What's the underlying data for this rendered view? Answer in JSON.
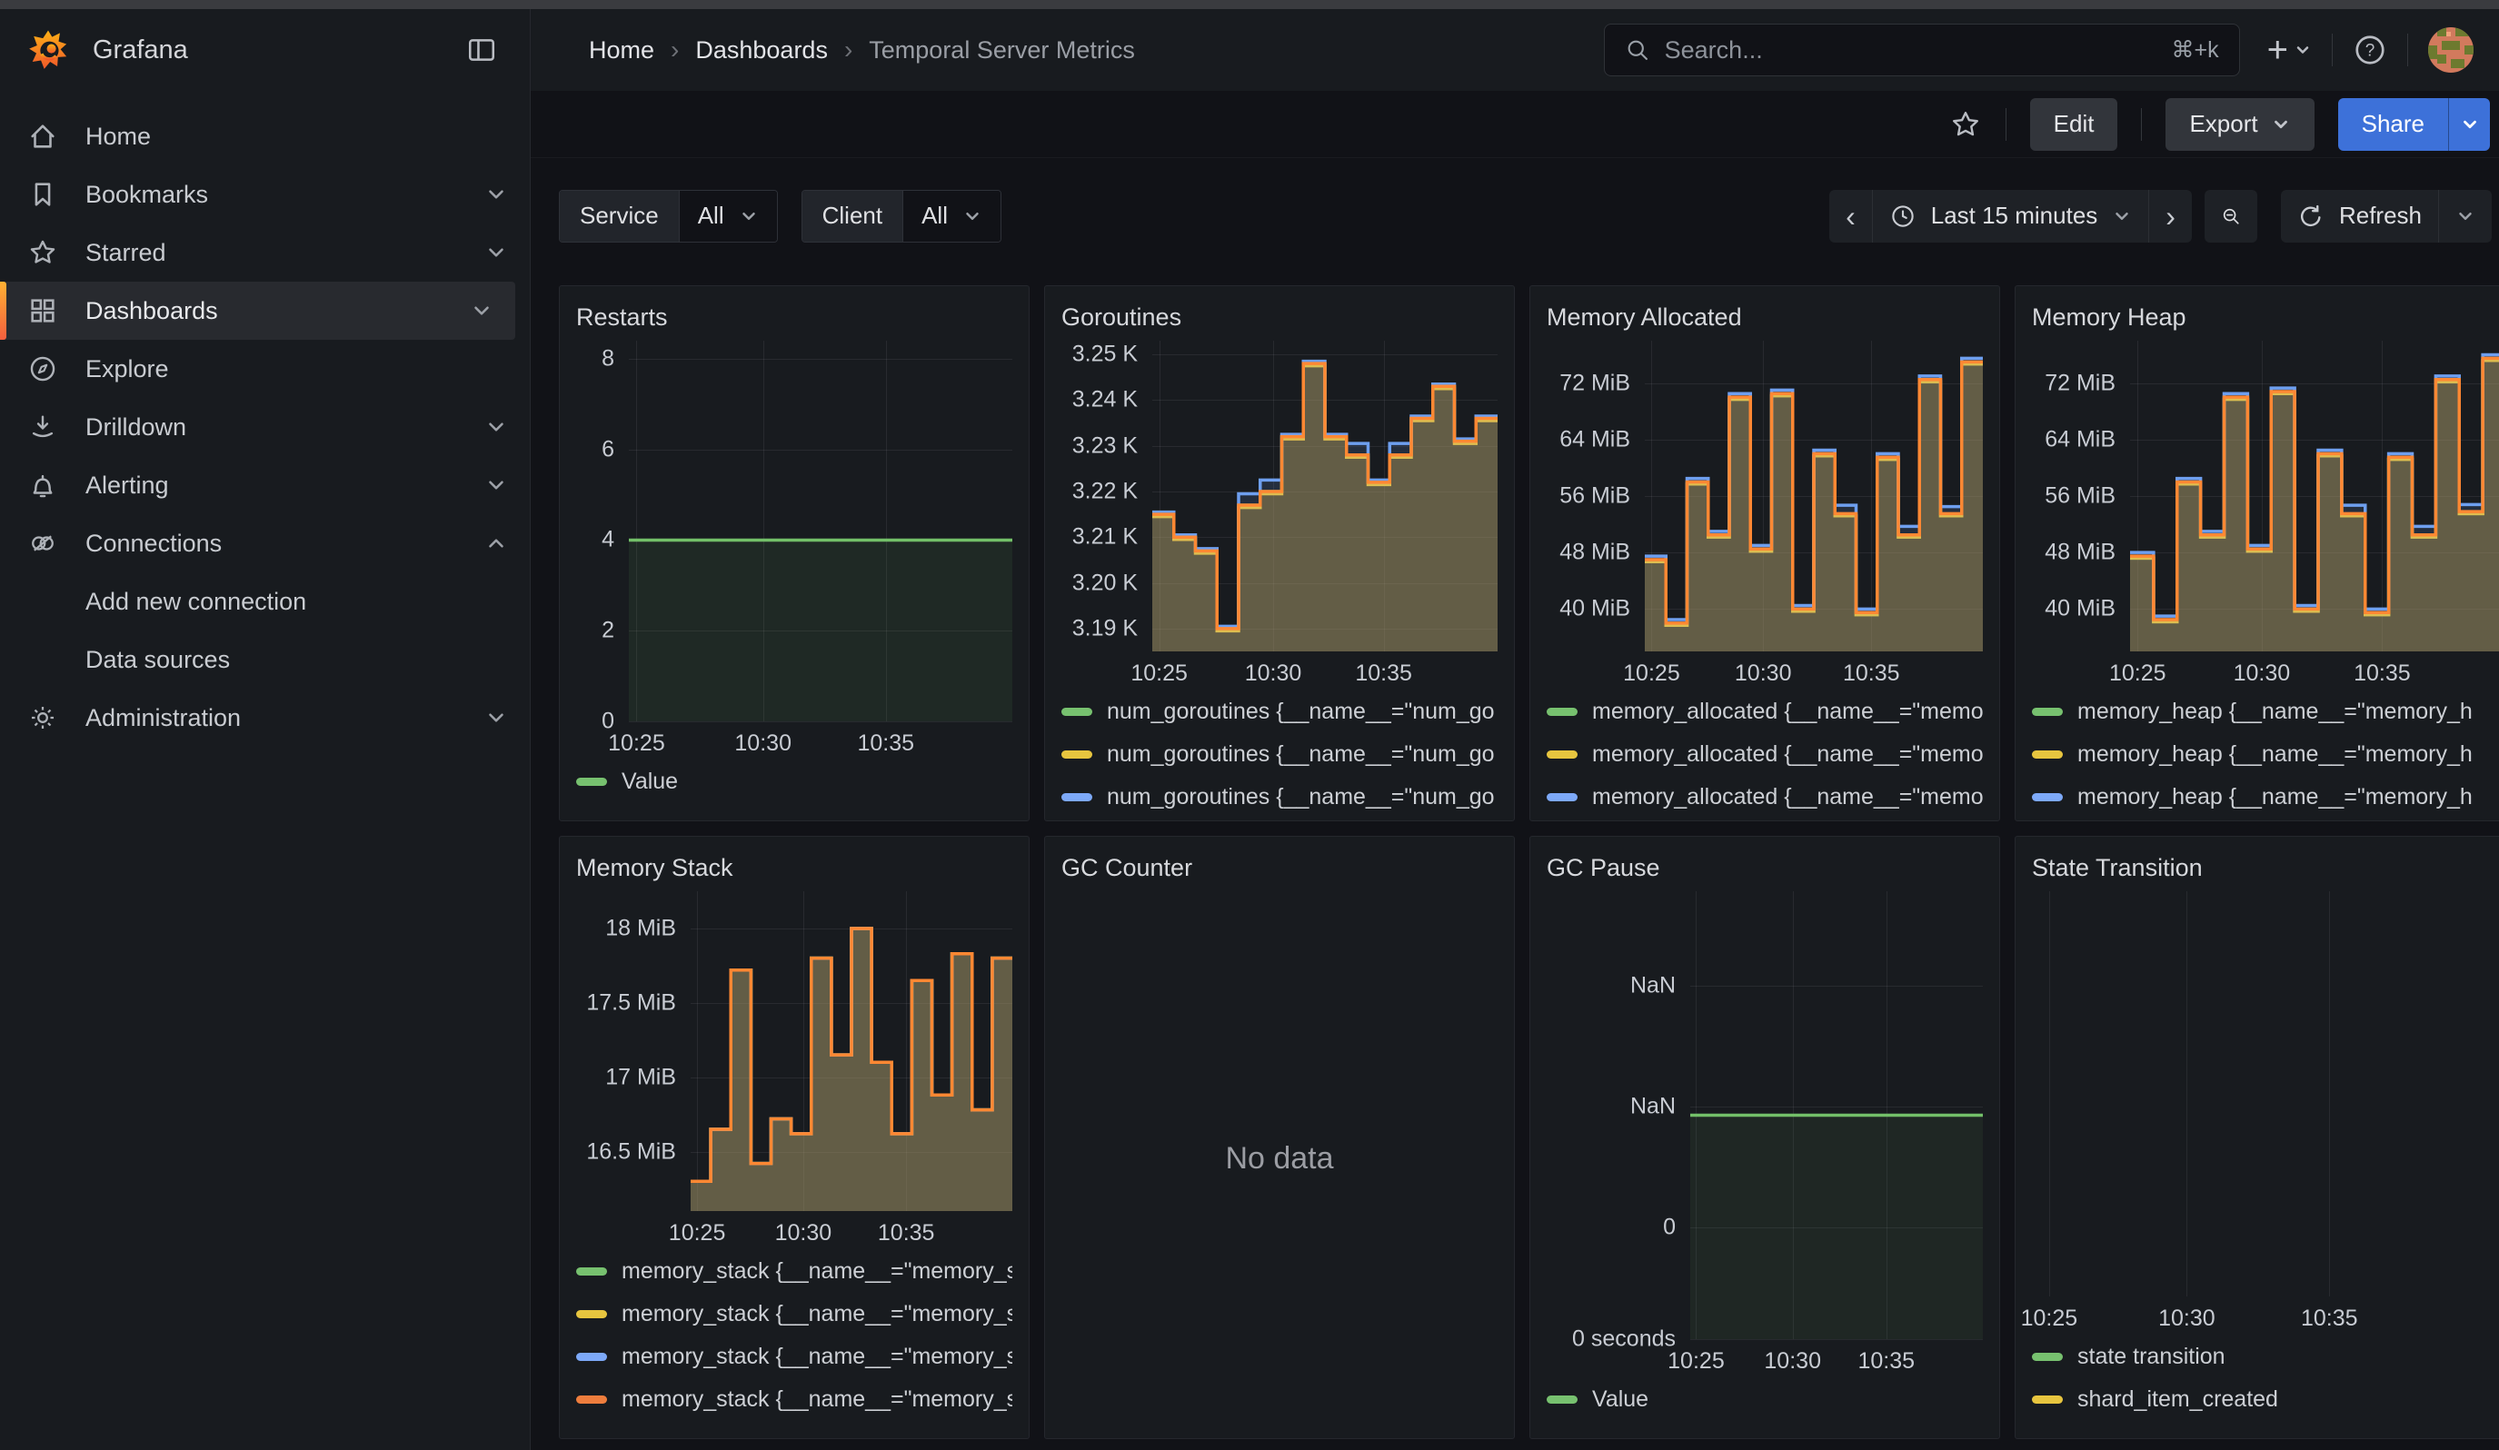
{
  "header": {
    "brand": "Grafana",
    "breadcrumb": [
      "Home",
      "Dashboards",
      "Temporal Server Metrics"
    ],
    "search": {
      "placeholder": "Search...",
      "shortcut": "⌘+k"
    }
  },
  "sidebar": {
    "items": [
      {
        "label": "Home"
      },
      {
        "label": "Bookmarks"
      },
      {
        "label": "Starred"
      },
      {
        "label": "Dashboards"
      },
      {
        "label": "Explore"
      },
      {
        "label": "Drilldown"
      },
      {
        "label": "Alerting"
      },
      {
        "label": "Connections"
      },
      {
        "label": "Add new connection"
      },
      {
        "label": "Data sources"
      },
      {
        "label": "Administration"
      }
    ]
  },
  "toolbar": {
    "edit_label": "Edit",
    "export_label": "Export",
    "share_label": "Share"
  },
  "filters": {
    "service_label": "Service",
    "service_value": "All",
    "client_label": "Client",
    "client_value": "All",
    "time_range": "Last 15 minutes",
    "refresh_label": "Refresh"
  },
  "panels": [
    {
      "title": "Restarts"
    },
    {
      "title": "Goroutines"
    },
    {
      "title": "Memory Allocated"
    },
    {
      "title": "Memory Heap"
    },
    {
      "title": "Memory Stack"
    },
    {
      "title": "GC Counter",
      "no_data": "No data"
    },
    {
      "title": "GC Pause"
    },
    {
      "title": "State Transition"
    }
  ],
  "colors": {
    "accent_blue": "#3d71d9",
    "accent_orange": "#ff8833",
    "series_green": "#77c16f",
    "series_yellow": "#e7c53f",
    "series_blue": "#7da9f8",
    "series_orange": "#ee7d3d"
  },
  "chart_data": [
    {
      "type": "area",
      "title": "Restarts",
      "ymin": 0,
      "ymax": 8.4,
      "ylabels": [
        {
          "t": "8",
          "v": 8
        },
        {
          "t": "6",
          "v": 6
        },
        {
          "t": "4",
          "v": 4
        },
        {
          "t": "2",
          "v": 2
        },
        {
          "t": "0",
          "v": 0
        }
      ],
      "xticks": [
        {
          "t": "10:25",
          "f": 0.02
        },
        {
          "t": "10:30",
          "f": 0.35
        },
        {
          "t": "10:35",
          "f": 0.67
        }
      ],
      "axis_width": 58,
      "series": [
        {
          "name": "Value",
          "color": "#73bf69",
          "fill": 0.09,
          "values": [
            4,
            4,
            4,
            4,
            4,
            4,
            4,
            4
          ]
        }
      ],
      "legend": [
        {
          "label": "Value",
          "color": "#77c16f"
        }
      ]
    },
    {
      "type": "area",
      "title": "Goroutines",
      "ymin": 3.185,
      "ymax": 3.253,
      "ylabels": [
        {
          "t": "3.25 K",
          "v": 3.25
        },
        {
          "t": "3.24 K",
          "v": 3.24
        },
        {
          "t": "3.23 K",
          "v": 3.23
        },
        {
          "t": "3.22 K",
          "v": 3.22
        },
        {
          "t": "3.21 K",
          "v": 3.21
        },
        {
          "t": "3.20 K",
          "v": 3.2
        },
        {
          "t": "3.19 K",
          "v": 3.19
        }
      ],
      "xticks": [
        {
          "t": "10:25",
          "f": 0.02
        },
        {
          "t": "10:30",
          "f": 0.35
        },
        {
          "t": "10:35",
          "f": 0.67
        }
      ],
      "axis_width": 100,
      "series": [
        {
          "name": "green",
          "color": "#73bf69",
          "values": [
            3.215,
            3.21,
            3.207,
            3.19,
            3.217,
            3.22,
            3.232,
            3.248,
            3.232,
            3.228,
            3.222,
            3.228,
            3.236,
            3.243,
            3.231,
            3.236
          ]
        },
        {
          "name": "yellow",
          "color": "#eace3a",
          "values": [
            3.2145,
            3.2095,
            3.2065,
            3.1895,
            3.2165,
            3.2195,
            3.2315,
            3.2475,
            3.2315,
            3.2275,
            3.2215,
            3.2275,
            3.2355,
            3.2425,
            3.2305,
            3.2355
          ]
        },
        {
          "name": "blue",
          "color": "#6e9fef",
          "values": [
            3.2155,
            3.2105,
            3.2075,
            3.1905,
            3.2195,
            3.2225,
            3.2325,
            3.2485,
            3.2325,
            3.2305,
            3.2225,
            3.2305,
            3.2365,
            3.2435,
            3.2315,
            3.2365
          ]
        },
        {
          "name": "orange",
          "color": "#ff8833",
          "values": [
            3.215,
            3.21,
            3.207,
            3.19,
            3.217,
            3.22,
            3.232,
            3.248,
            3.232,
            3.228,
            3.222,
            3.228,
            3.236,
            3.243,
            3.231,
            3.236
          ]
        }
      ],
      "legend": [
        {
          "label": "num_goroutines {__name__=\"num_go",
          "color": "#77c16f"
        },
        {
          "label": "num_goroutines {__name__=\"num_go",
          "color": "#e7c53f"
        },
        {
          "label": "num_goroutines {__name__=\"num_go",
          "color": "#7da9f8"
        },
        {
          "label": "num_goroutines {__name__=\"num_go",
          "color": "#ee7d3d"
        }
      ]
    },
    {
      "type": "area",
      "title": "Memory Allocated",
      "ymin": 34,
      "ymax": 78,
      "ylabels": [
        {
          "t": "72 MiB",
          "v": 72
        },
        {
          "t": "64 MiB",
          "v": 64
        },
        {
          "t": "56 MiB",
          "v": 56
        },
        {
          "t": "48 MiB",
          "v": 48
        },
        {
          "t": "40 MiB",
          "v": 40
        }
      ],
      "xticks": [
        {
          "t": "10:25",
          "f": 0.02
        },
        {
          "t": "10:30",
          "f": 0.35
        },
        {
          "t": "10:35",
          "f": 0.67
        }
      ],
      "axis_width": 108,
      "series": [
        {
          "name": "green",
          "color": "#73bf69",
          "values": [
            46.7,
            37.7,
            57.7,
            50.2,
            69.7,
            48.2,
            70.2,
            39.7,
            61.7,
            53.2,
            39.2,
            61.2,
            50.2,
            72.2,
            53.2,
            74.7
          ]
        },
        {
          "name": "yellow",
          "color": "#eace3a",
          "values": [
            46.7,
            37.7,
            57.7,
            50.2,
            69.7,
            48.2,
            70.2,
            39.7,
            61.7,
            53.2,
            39.2,
            61.2,
            50.2,
            72.2,
            53.2,
            74.7
          ]
        },
        {
          "name": "blue",
          "color": "#6e9fef",
          "values": [
            47.5,
            38.5,
            58.5,
            51,
            70.5,
            49,
            71,
            40.5,
            62.5,
            54.7,
            40,
            62,
            51.7,
            73,
            54.5,
            75.5
          ]
        },
        {
          "name": "orange",
          "color": "#ff8833",
          "values": [
            47,
            38,
            58,
            50.5,
            70,
            48.5,
            70.5,
            40,
            62,
            53.5,
            39.5,
            61.5,
            50.5,
            72.5,
            53.5,
            75
          ]
        }
      ],
      "legend": [
        {
          "label": "memory_allocated {__name__=\"memo",
          "color": "#77c16f"
        },
        {
          "label": "memory_allocated {__name__=\"memo",
          "color": "#e7c53f"
        },
        {
          "label": "memory_allocated {__name__=\"memo",
          "color": "#7da9f8"
        },
        {
          "label": "memory_allocated {__name__=\"memo",
          "color": "#ee7d3d"
        }
      ]
    },
    {
      "type": "area",
      "title": "Memory Heap",
      "ymin": 34,
      "ymax": 78,
      "ylabels": [
        {
          "t": "72 MiB",
          "v": 72
        },
        {
          "t": "64 MiB",
          "v": 64
        },
        {
          "t": "56 MiB",
          "v": 56
        },
        {
          "t": "48 MiB",
          "v": 48
        },
        {
          "t": "40 MiB",
          "v": 40
        }
      ],
      "xticks": [
        {
          "t": "10:25",
          "f": 0.02
        },
        {
          "t": "10:30",
          "f": 0.35
        },
        {
          "t": "10:35",
          "f": 0.67
        }
      ],
      "axis_width": 108,
      "series": [
        {
          "name": "green",
          "color": "#73bf69",
          "values": [
            47.2,
            38.2,
            57.7,
            50.2,
            69.7,
            48.2,
            70.5,
            39.7,
            61.7,
            53.2,
            39.2,
            61.2,
            50.2,
            72.2,
            53.5,
            75.2
          ]
        },
        {
          "name": "yellow",
          "color": "#eace3a",
          "values": [
            47.2,
            38.2,
            57.7,
            50.2,
            69.7,
            48.2,
            70.5,
            39.7,
            61.7,
            53.2,
            39.2,
            61.2,
            50.2,
            72.2,
            53.5,
            75.2
          ]
        },
        {
          "name": "blue",
          "color": "#6e9fef",
          "values": [
            48,
            39,
            58.5,
            51,
            70.5,
            49,
            71.3,
            40.5,
            62.5,
            54.7,
            40,
            62,
            51.7,
            73,
            54.8,
            76
          ]
        },
        {
          "name": "orange",
          "color": "#ff8833",
          "values": [
            47.5,
            38.5,
            58,
            50.5,
            70,
            48.5,
            70.8,
            40,
            62,
            53.5,
            39.5,
            61.5,
            50.5,
            72.5,
            53.8,
            75.5
          ]
        }
      ],
      "legend": [
        {
          "label": "memory_heap {__name__=\"memory_h",
          "color": "#77c16f"
        },
        {
          "label": "memory_heap {__name__=\"memory_h",
          "color": "#e7c53f"
        },
        {
          "label": "memory_heap {__name__=\"memory_h",
          "color": "#7da9f8"
        },
        {
          "label": "memory_heap {__name__=\"memory_h",
          "color": "#ee7d3d"
        }
      ]
    },
    {
      "type": "area",
      "title": "Memory Stack",
      "ymin": 16.1,
      "ymax": 18.25,
      "ylabels": [
        {
          "t": "18 MiB",
          "v": 18
        },
        {
          "t": "17.5 MiB",
          "v": 17.5
        },
        {
          "t": "17 MiB",
          "v": 17
        },
        {
          "t": "16.5 MiB",
          "v": 16.5
        }
      ],
      "xticks": [
        {
          "t": "10:25",
          "f": 0.02
        },
        {
          "t": "10:30",
          "f": 0.35
        },
        {
          "t": "10:35",
          "f": 0.67
        }
      ],
      "axis_width": 126,
      "series": [
        {
          "name": "green",
          "color": "#73bf69",
          "values": [
            16.3,
            16.65,
            17.72,
            16.42,
            16.72,
            16.62,
            17.8,
            17.15,
            18.0,
            17.1,
            16.62,
            17.65,
            16.88,
            17.83,
            16.78,
            17.8
          ]
        },
        {
          "name": "yellow",
          "color": "#eace3a",
          "values": [
            16.3,
            16.65,
            17.72,
            16.42,
            16.72,
            16.62,
            17.8,
            17.15,
            18.0,
            17.1,
            16.62,
            17.65,
            16.88,
            17.83,
            16.78,
            17.8
          ]
        },
        {
          "name": "blue",
          "color": "#6e9fef",
          "values": [
            16.3,
            16.65,
            17.72,
            16.42,
            16.72,
            16.62,
            17.8,
            17.15,
            18.0,
            17.1,
            16.62,
            17.65,
            16.88,
            17.83,
            16.78,
            17.8
          ]
        },
        {
          "name": "orange",
          "color": "#ff8833",
          "values": [
            16.3,
            16.65,
            17.72,
            16.42,
            16.72,
            16.62,
            17.8,
            17.15,
            18.0,
            17.1,
            16.62,
            17.65,
            16.88,
            17.83,
            16.78,
            17.8
          ]
        }
      ],
      "legend": [
        {
          "label": "memory_stack {__name__=\"memory_s",
          "color": "#77c16f"
        },
        {
          "label": "memory_stack {__name__=\"memory_s",
          "color": "#e7c53f"
        },
        {
          "label": "memory_stack {__name__=\"memory_s",
          "color": "#7da9f8"
        },
        {
          "label": "memory_stack {__name__=\"memory_s",
          "color": "#ee7d3d"
        }
      ]
    },
    {
      "type": "nodata",
      "title": "GC Counter",
      "text": "No data"
    },
    {
      "type": "area",
      "title": "GC Pause",
      "ymin": 0,
      "ymax": 1,
      "ylabels": [
        {
          "t": "NaN",
          "v": 0.79
        },
        {
          "t": "NaN",
          "v": 0.52
        },
        {
          "t": "0",
          "v": 0.25
        },
        {
          "t": "0 seconds",
          "v": 0
        }
      ],
      "xticks": [
        {
          "t": "10:25",
          "f": 0.02
        },
        {
          "t": "10:30",
          "f": 0.35
        },
        {
          "t": "10:35",
          "f": 0.67
        }
      ],
      "axis_width": 158,
      "series": [
        {
          "name": "Value",
          "color": "#73bf69",
          "fill": 0.08,
          "values": [
            0.5,
            0.5,
            0.5,
            0.5,
            0.5,
            0.5,
            0.5,
            0.5
          ]
        }
      ],
      "legend": [
        {
          "label": "Value",
          "color": "#77c16f"
        }
      ]
    },
    {
      "type": "empty",
      "title": "State Transition",
      "xticks": [
        {
          "t": "10:25",
          "f": 0.07
        },
        {
          "t": "10:30",
          "f": 0.35
        },
        {
          "t": "10:35",
          "f": 0.64
        }
      ],
      "axis_width": 0,
      "legend": [
        {
          "label": "state transition",
          "color": "#77c16f"
        },
        {
          "label": "shard_item_created",
          "color": "#e7c53f"
        }
      ]
    }
  ]
}
